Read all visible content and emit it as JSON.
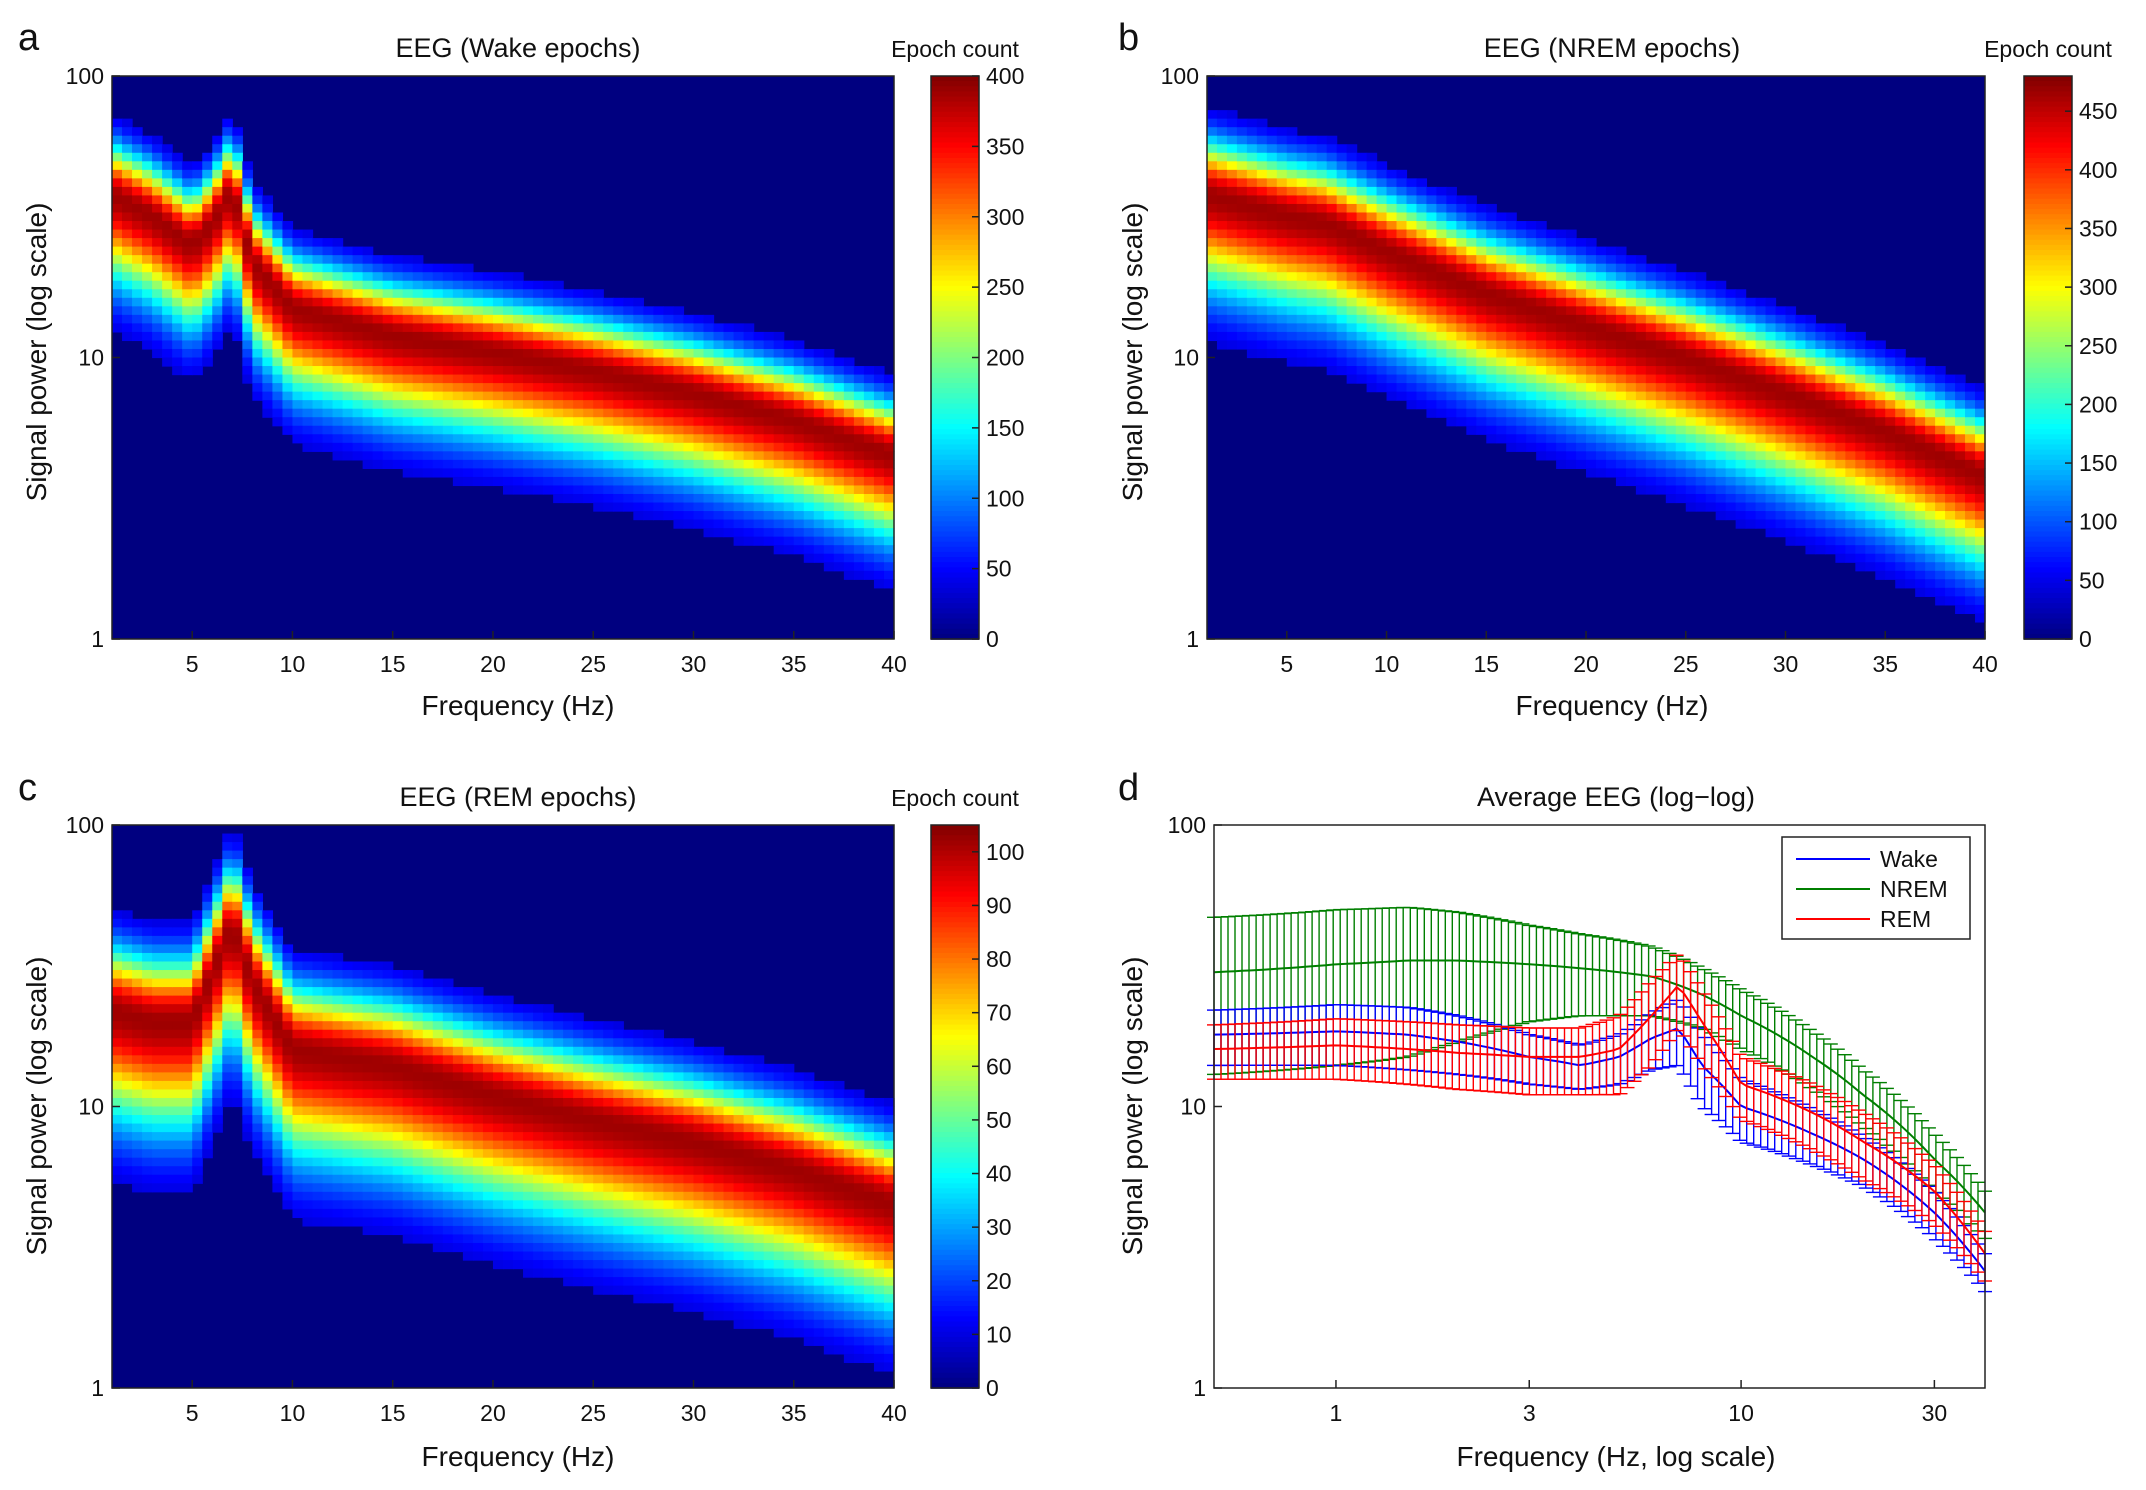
{
  "figure": {
    "panels": [
      {
        "letter": "a",
        "title": "EEG (Wake epochs)",
        "colorbar_title": "Epoch count",
        "xlabel": "Frequency (Hz)",
        "ylabel": "Signal power (log scale)"
      },
      {
        "letter": "b",
        "title": "EEG (NREM epochs)",
        "colorbar_title": "Epoch count",
        "xlabel": "Frequency (Hz)",
        "ylabel": "Signal power (log scale)"
      },
      {
        "letter": "c",
        "title": "EEG (REM epochs)",
        "colorbar_title": "Epoch count",
        "xlabel": "Frequency (Hz)",
        "ylabel": "Signal power (log scale)"
      },
      {
        "letter": "d",
        "title": "Average EEG (log−log)",
        "xlabel": "Frequency (Hz, log scale)",
        "ylabel": "Signal power (log scale)"
      }
    ]
  },
  "chart_data": [
    {
      "panel": "a",
      "type": "heatmap",
      "title": "EEG (Wake epochs)",
      "xlabel": "Frequency (Hz)",
      "ylabel": "Signal power (log scale)",
      "xlim": [
        1,
        40
      ],
      "ylim": [
        1,
        100
      ],
      "yscale": "log",
      "xticks": [
        "5",
        "10",
        "15",
        "20",
        "25",
        "30",
        "35",
        "40"
      ],
      "yticks": [
        "1",
        "10",
        "100"
      ],
      "colorbar": {
        "title": "Epoch count",
        "range": [
          0,
          400
        ],
        "ticks": [
          "0",
          "50",
          "100",
          "150",
          "200",
          "250",
          "300",
          "350",
          "400"
        ]
      },
      "colormap": "jet",
      "ridge": {
        "freq_hz": [
          1,
          3,
          5,
          6,
          7,
          8,
          10,
          15,
          20,
          25,
          30,
          35,
          40
        ],
        "power": [
          38,
          32,
          25,
          30,
          40,
          22,
          15,
          12,
          10.5,
          9,
          7.5,
          6,
          4.5
        ]
      },
      "ridge_width_decades": 0.12
    },
    {
      "panel": "b",
      "type": "heatmap",
      "title": "EEG (NREM epochs)",
      "xlabel": "Frequency (Hz)",
      "ylabel": "Signal power (log scale)",
      "xlim": [
        1,
        40
      ],
      "ylim": [
        1,
        100
      ],
      "yscale": "log",
      "xticks": [
        "5",
        "10",
        "15",
        "20",
        "25",
        "30",
        "35",
        "40"
      ],
      "yticks": [
        "1",
        "10",
        "100"
      ],
      "colorbar": {
        "title": "Epoch count",
        "range": [
          0,
          480
        ],
        "ticks": [
          "0",
          "50",
          "100",
          "150",
          "200",
          "250",
          "300",
          "350",
          "400",
          "450"
        ]
      },
      "colormap": "jet",
      "ridge": {
        "freq_hz": [
          1,
          5,
          7,
          10,
          15,
          20,
          25,
          30,
          35,
          40
        ],
        "power": [
          38,
          32,
          30,
          24,
          17,
          13,
          10,
          7.5,
          5.5,
          3.8
        ]
      },
      "ridge_width_decades": 0.13
    },
    {
      "panel": "c",
      "type": "heatmap",
      "title": "EEG (REM epochs)",
      "xlabel": "Frequency (Hz)",
      "ylabel": "Signal power (log scale)",
      "xlim": [
        1,
        40
      ],
      "ylim": [
        1,
        100
      ],
      "yscale": "log",
      "xticks": [
        "5",
        "10",
        "15",
        "20",
        "25",
        "30",
        "35",
        "40"
      ],
      "yticks": [
        "1",
        "10",
        "100"
      ],
      "colorbar": {
        "title": "Epoch count",
        "range": [
          0,
          105
        ],
        "ticks": [
          "0",
          "10",
          "20",
          "30",
          "40",
          "50",
          "60",
          "70",
          "80",
          "90",
          "100"
        ]
      },
      "colormap": "jet",
      "ridge": {
        "freq_hz": [
          1,
          3,
          5,
          6,
          7,
          8,
          10,
          15,
          20,
          25,
          30,
          35,
          40
        ],
        "power": [
          22,
          20,
          20,
          30,
          45,
          28,
          16,
          14,
          11,
          9,
          7.5,
          6,
          4.5
        ]
      },
      "ridge_width_decades": 0.15
    },
    {
      "panel": "d",
      "type": "line",
      "title": "Average EEG (log−log)",
      "xlabel": "Frequency (Hz, log scale)",
      "ylabel": "Signal power (log scale)",
      "xscale": "log",
      "yscale": "log",
      "xlim": [
        0.5,
        40
      ],
      "ylim": [
        1,
        100
      ],
      "xticks": [
        "1",
        "3",
        "10",
        "30"
      ],
      "yticks": [
        "1",
        "10",
        "100"
      ],
      "legend_position": "top-right",
      "series": [
        {
          "name": "Wake",
          "color": "#0000ff",
          "x": [
            0.5,
            1,
            1.5,
            2,
            3,
            4,
            5,
            6,
            7,
            8,
            10,
            15,
            20,
            30,
            40
          ],
          "y": [
            18,
            18.5,
            18,
            17,
            15,
            14,
            15,
            17.5,
            19,
            14,
            10,
            8,
            6.5,
            4.2,
            2.6
          ],
          "err": [
            4,
            4.5,
            4.5,
            4,
            3,
            2.5,
            3,
            4,
            5,
            4,
            2.5,
            1.8,
            1.3,
            0.8,
            0.4
          ]
        },
        {
          "name": "NREM",
          "color": "#007f00",
          "x": [
            0.5,
            1,
            1.5,
            2,
            3,
            4,
            5,
            6,
            7,
            8,
            10,
            15,
            20,
            30,
            40
          ],
          "y": [
            30,
            32,
            33,
            33,
            32,
            31,
            30,
            29,
            27,
            25,
            21,
            15,
            11,
            6.5,
            4.2
          ],
          "err": [
            17,
            18,
            18,
            16,
            12,
            10,
            9,
            8,
            7,
            6,
            5,
            3.5,
            2.5,
            1.5,
            0.8
          ]
        },
        {
          "name": "REM",
          "color": "#ff0000",
          "x": [
            0.5,
            1,
            1.5,
            2,
            3,
            4,
            5,
            6,
            7,
            8,
            10,
            15,
            20,
            30,
            40
          ],
          "y": [
            16,
            16.5,
            16,
            15.5,
            15,
            15,
            16,
            21,
            27,
            20,
            12,
            9.5,
            7.5,
            5,
            3
          ],
          "err": [
            3.5,
            4,
            4,
            4,
            4,
            4,
            5,
            7,
            8,
            6,
            3,
            2.5,
            2,
            1.2,
            0.6
          ]
        }
      ]
    }
  ]
}
